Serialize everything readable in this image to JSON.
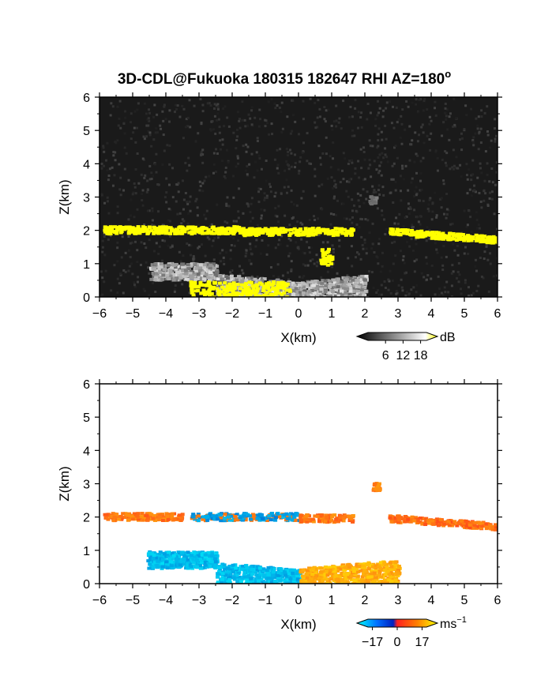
{
  "title": "3D-CDL@Fukuoka 180315 182647 RHI AZ=180",
  "title_superscript": "o",
  "chart_data": [
    {
      "type": "heatmap",
      "name": "backscatter",
      "xlabel": "X(km)",
      "ylabel": "Z(km)",
      "xlim": [
        -6,
        6
      ],
      "ylim": [
        0,
        6
      ],
      "xticks": [
        "−6",
        "−5",
        "−4",
        "−3",
        "−2",
        "−1",
        "0",
        "1",
        "2",
        "3",
        "4",
        "5",
        "6"
      ],
      "yticks": [
        "0",
        "1",
        "2",
        "3",
        "4",
        "5",
        "6"
      ],
      "colorbar": {
        "unit": "dB",
        "ticks": [
          "6",
          "12",
          "18"
        ],
        "range": [
          0,
          20
        ]
      },
      "background": "#1a1a1a",
      "features": [
        {
          "label": "cloud-base layer left",
          "x": [
            -5.9,
            -1.8
          ],
          "z": 2.05,
          "value_db": 20
        },
        {
          "label": "cloud-base layer center",
          "x": [
            -1.8,
            1.6
          ],
          "z": 2.0,
          "value_db": 20
        },
        {
          "label": "cloud-base layer right",
          "x": [
            2.7,
            6.0
          ],
          "z": [
            2.0,
            1.75
          ],
          "value_db": 20
        },
        {
          "label": "elevated blob",
          "x": [
            0.6,
            1.0
          ],
          "z": [
            1.0,
            1.5
          ],
          "value_db": 20
        },
        {
          "label": "low aerosol layer",
          "x": [
            -4.5,
            2.0
          ],
          "z": [
            0.0,
            1.1
          ],
          "value_db": 12
        },
        {
          "label": "surface echo",
          "x": [
            -3.3,
            -0.3
          ],
          "z": [
            0.0,
            0.5
          ],
          "value_db": 20
        },
        {
          "label": "isolated echo",
          "x": [
            2.1,
            2.3
          ],
          "z": 2.95,
          "value_db": 8
        }
      ]
    },
    {
      "type": "heatmap",
      "name": "radial velocity",
      "xlabel": "X(km)",
      "ylabel": "Z(km)",
      "xlim": [
        -6,
        6
      ],
      "ylim": [
        0,
        6
      ],
      "xticks": [
        "−6",
        "−5",
        "−4",
        "−3",
        "−2",
        "−1",
        "0",
        "1",
        "2",
        "3",
        "4",
        "5",
        "6"
      ],
      "yticks": [
        "0",
        "1",
        "2",
        "3",
        "4",
        "5",
        "6"
      ],
      "colorbar": {
        "unit": "ms",
        "unit_superscript": "−1",
        "ticks": [
          "−17",
          "0",
          "17"
        ],
        "range": [
          -20,
          20
        ]
      },
      "background": "#ffffff",
      "features": [
        {
          "label": "layer left",
          "x": [
            -5.9,
            -3.5
          ],
          "z": 2.05,
          "velocity_ms": 8
        },
        {
          "label": "layer mixed",
          "x": [
            -3.3,
            0.0
          ],
          "z": 2.05,
          "velocity_ms": -8
        },
        {
          "label": "layer center right",
          "x": [
            0.0,
            1.6
          ],
          "z": 2.0,
          "velocity_ms": 8
        },
        {
          "label": "layer right",
          "x": [
            2.7,
            6.0
          ],
          "z": [
            2.0,
            1.75
          ],
          "velocity_ms": 7
        },
        {
          "label": "isolated echo",
          "x": [
            2.2,
            2.4
          ],
          "z": 2.95,
          "velocity_ms": 9
        },
        {
          "label": "low layer approaching",
          "x": [
            -4.6,
            0.0
          ],
          "z": [
            0.0,
            1.0
          ],
          "velocity_ms": -14
        },
        {
          "label": "low layer receding",
          "x": [
            0.0,
            3.0
          ],
          "z": [
            0.0,
            1.1
          ],
          "velocity_ms": 13
        }
      ]
    }
  ]
}
